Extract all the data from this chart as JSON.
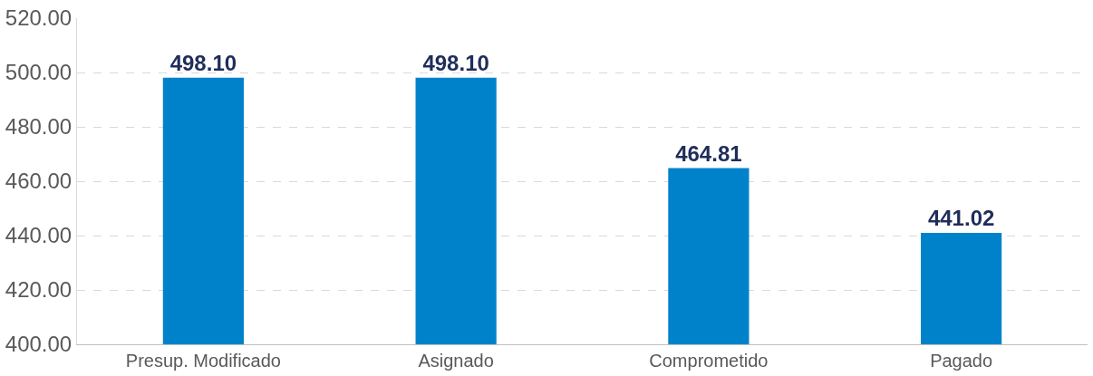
{
  "chart_data": {
    "type": "bar",
    "categories": [
      "Presup. Modificado",
      "Asignado",
      "Comprometido",
      "Pagado"
    ],
    "values": [
      498.1,
      498.1,
      464.81,
      441.02
    ],
    "value_labels": [
      "498.10",
      "498.10",
      "464.81",
      "441.02"
    ],
    "color": "#0082ca",
    "ylim": [
      400,
      520
    ],
    "yticks": [
      {
        "value": 400,
        "label": "400.00"
      },
      {
        "value": 420,
        "label": "420.00"
      },
      {
        "value": 440,
        "label": "440.00"
      },
      {
        "value": 460,
        "label": "460.00"
      },
      {
        "value": 480,
        "label": "480.00"
      },
      {
        "value": 500,
        "label": "500.00"
      },
      {
        "value": 520,
        "label": "520.00"
      }
    ],
    "grid": "y"
  }
}
